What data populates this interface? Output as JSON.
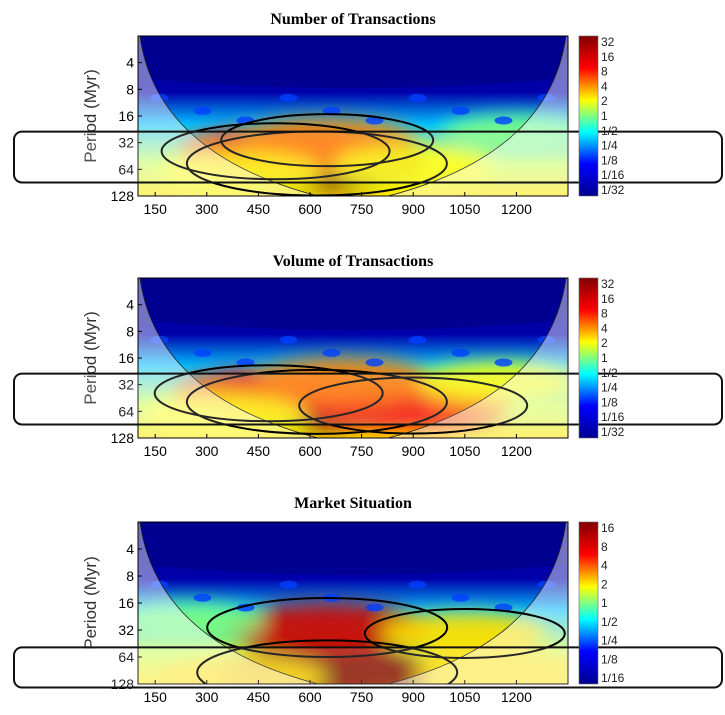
{
  "chart_data": [
    {
      "type": "heatmap",
      "title": "Number of Transactions",
      "ylabel": "Period (Myr)",
      "xlabel": "",
      "x_ticks": [
        150,
        300,
        450,
        600,
        750,
        900,
        1050,
        1200
      ],
      "y_ticks": [
        4,
        8,
        16,
        32,
        64,
        128
      ],
      "xlim": [
        100,
        1350
      ],
      "ylim": [
        2,
        128
      ],
      "y_scale": "log2",
      "colorbar_ticks": [
        "32",
        "16",
        "8",
        "4",
        "2",
        "1",
        "1/2",
        "1/4",
        "1/8",
        "1/16",
        "1/32"
      ],
      "colorbar_range": [
        0.03125,
        32
      ],
      "highlight_band": [
        24,
        90
      ],
      "hotspots": [
        {
          "x": 620,
          "y": 55,
          "power": 32
        },
        {
          "x": 500,
          "y": 40,
          "power": 8
        },
        {
          "x": 650,
          "y": 30,
          "power": 4
        },
        {
          "x": 400,
          "y": 70,
          "power": 2
        },
        {
          "x": 900,
          "y": 60,
          "power": 2
        },
        {
          "x": 1200,
          "y": 25,
          "power": 1
        }
      ]
    },
    {
      "type": "heatmap",
      "title": "Volume of Transactions",
      "ylabel": "Period (Myr)",
      "xlabel": "",
      "x_ticks": [
        150,
        300,
        450,
        600,
        750,
        900,
        1050,
        1200
      ],
      "y_ticks": [
        4,
        8,
        16,
        32,
        64,
        128
      ],
      "xlim": [
        100,
        1350
      ],
      "ylim": [
        2,
        128
      ],
      "y_scale": "log2",
      "colorbar_ticks": [
        "32",
        "16",
        "8",
        "4",
        "2",
        "1",
        "1/2",
        "1/4",
        "1/8",
        "1/16",
        "1/32"
      ],
      "colorbar_range": [
        0.03125,
        32
      ],
      "highlight_band": [
        24,
        90
      ],
      "hotspots": [
        {
          "x": 620,
          "y": 50,
          "power": 32
        },
        {
          "x": 480,
          "y": 40,
          "power": 8
        },
        {
          "x": 900,
          "y": 55,
          "power": 8
        },
        {
          "x": 700,
          "y": 28,
          "power": 4
        },
        {
          "x": 350,
          "y": 70,
          "power": 2
        },
        {
          "x": 1150,
          "y": 30,
          "power": 2
        }
      ]
    },
    {
      "type": "heatmap",
      "title": "Market Situation",
      "ylabel": "Period (Myr)",
      "xlabel": "",
      "x_ticks": [
        150,
        300,
        450,
        600,
        750,
        900,
        1050,
        1200
      ],
      "y_ticks": [
        4,
        8,
        16,
        32,
        64,
        128
      ],
      "xlim": [
        100,
        1350
      ],
      "ylim": [
        2,
        128
      ],
      "y_scale": "log2",
      "colorbar_ticks": [
        "16",
        "8",
        "4",
        "2",
        "1",
        "1/2",
        "1/4",
        "1/8",
        "1/16"
      ],
      "colorbar_range": [
        0.0625,
        16
      ],
      "highlight_band": [
        50,
        140
      ],
      "hotspots": [
        {
          "x": 650,
          "y": 95,
          "power": 16
        },
        {
          "x": 650,
          "y": 30,
          "power": 8
        },
        {
          "x": 1050,
          "y": 35,
          "power": 2
        },
        {
          "x": 400,
          "y": 110,
          "power": 2
        },
        {
          "x": 1150,
          "y": 90,
          "power": 2
        },
        {
          "x": 250,
          "y": 25,
          "power": 1
        }
      ]
    }
  ],
  "colormap": [
    "#00008f",
    "#0000ff",
    "#00ffff",
    "#ffff00",
    "#ff0000",
    "#800000"
  ]
}
